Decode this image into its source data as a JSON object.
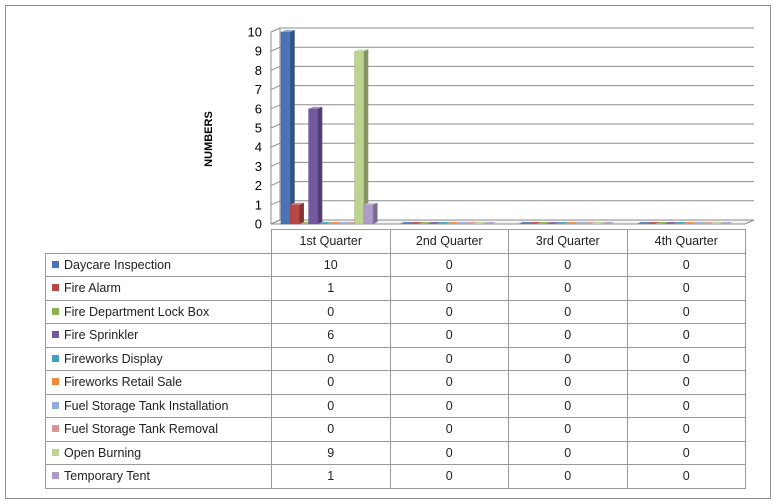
{
  "chart_data": {
    "type": "bar",
    "three_d": true,
    "title": "",
    "xlabel": "",
    "ylabel": "NUMBERS",
    "ylim": [
      0,
      10
    ],
    "yticks": [
      "0",
      "1",
      "2",
      "3",
      "4",
      "5",
      "6",
      "7",
      "8",
      "9",
      "10"
    ],
    "grid": true,
    "legend": "data-table",
    "categories": [
      "1st Quarter",
      "2nd Quarter",
      "3rd Quarter",
      "4th Quarter"
    ],
    "series": [
      {
        "name": "Daycare Inspection",
        "color": "#4a74b8",
        "values": [
          10,
          0,
          0,
          0
        ]
      },
      {
        "name": "Fire Alarm",
        "color": "#b94745",
        "values": [
          1,
          0,
          0,
          0
        ]
      },
      {
        "name": "Fire Department Lock Box",
        "color": "#8eb14f",
        "values": [
          0,
          0,
          0,
          0
        ]
      },
      {
        "name": "Fire Sprinkler",
        "color": "#7559a0",
        "values": [
          6,
          0,
          0,
          0
        ]
      },
      {
        "name": "Fireworks Display",
        "color": "#3fa2bd",
        "values": [
          0,
          0,
          0,
          0
        ]
      },
      {
        "name": "Fireworks Retail Sale",
        "color": "#ef8a3a",
        "values": [
          0,
          0,
          0,
          0
        ]
      },
      {
        "name": "Fuel Storage Tank Installation",
        "color": "#93acd6",
        "values": [
          0,
          0,
          0,
          0
        ]
      },
      {
        "name": "Fuel Storage Tank Removal",
        "color": "#d99593",
        "values": [
          0,
          0,
          0,
          0
        ]
      },
      {
        "name": "Open Burning",
        "color": "#bcd490",
        "values": [
          9,
          0,
          0,
          0
        ]
      },
      {
        "name": "Temporary Tent",
        "color": "#ad9bc9",
        "values": [
          1,
          0,
          0,
          0
        ]
      }
    ]
  }
}
